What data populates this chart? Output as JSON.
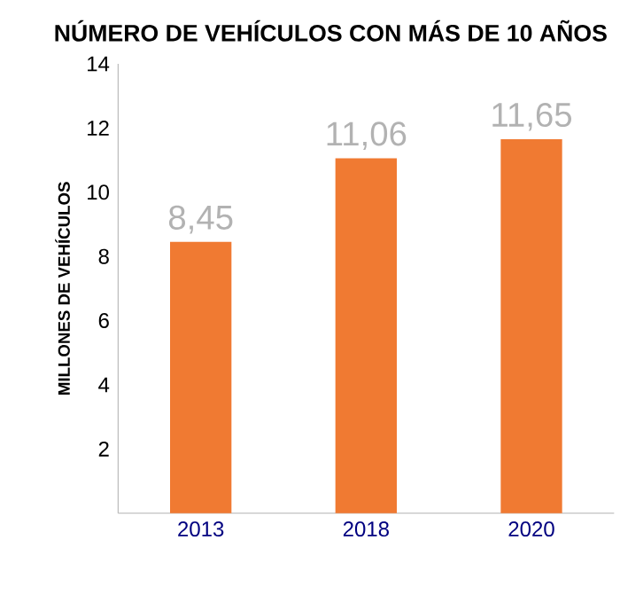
{
  "chart_data": {
    "type": "bar",
    "title": "NÚMERO DE VEHÍCULOS CON MÁS DE 10 AÑOS",
    "ylabel": "MILLONES DE VEHÍCULOS",
    "categories": [
      "2013",
      "2018",
      "2020"
    ],
    "values": [
      8.45,
      11.06,
      11.65
    ],
    "value_labels": [
      "8,45",
      "11,06",
      "11,65"
    ],
    "color": "#f07a32",
    "ylim": [
      0,
      14
    ],
    "yticks": [
      2,
      4,
      6,
      8,
      10,
      12,
      14
    ]
  }
}
